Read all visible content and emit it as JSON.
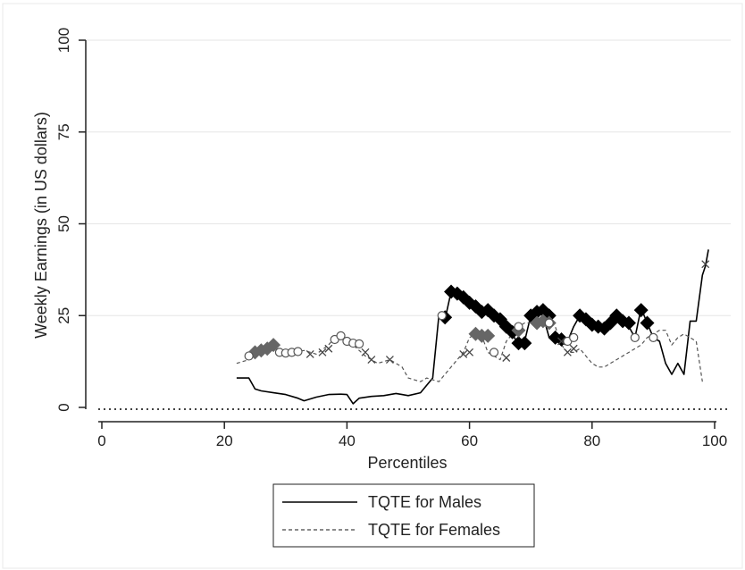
{
  "chart_data": {
    "type": "line",
    "xlabel": "Percentiles",
    "ylabel": "Weekly Earnings (in US dollars)",
    "xlim": [
      0,
      100
    ],
    "ylim": [
      0,
      100
    ],
    "xticks": [
      0,
      20,
      40,
      60,
      80,
      100
    ],
    "yticks": [
      0,
      25,
      50,
      75,
      100
    ],
    "xtick_labels": [
      "0",
      "20",
      "40",
      "60",
      "80",
      "100"
    ],
    "ytick_labels": [
      "0",
      "25",
      "50",
      "75",
      "100"
    ],
    "grid": "horizontal",
    "zero_reference_line": "dotted",
    "legend_position": "bottom",
    "legend": [
      "TQTE for Males",
      "TQTE for Females"
    ],
    "colors": {
      "males": "#000000",
      "females": "#555555",
      "diamond_dark": "#000000",
      "diamond_gray": "#666666",
      "gridline": "#e6e6e6",
      "frame": "#eaeaea"
    },
    "series": [
      {
        "name": "TQTE for Males",
        "style": "solid",
        "x": [
          22,
          24,
          25,
          26,
          28,
          30,
          32,
          33,
          35,
          37,
          39,
          40,
          41,
          42,
          44,
          46,
          48,
          49,
          50,
          52,
          54,
          55,
          56,
          57,
          58,
          59,
          60,
          61,
          62,
          63,
          64,
          65,
          66,
          67,
          68,
          69,
          70,
          71,
          72,
          73,
          74,
          75,
          76,
          77,
          78,
          79,
          80,
          81,
          82,
          83,
          84,
          85,
          86,
          87,
          88,
          89,
          90,
          91,
          92,
          93,
          94,
          95,
          96,
          97,
          98,
          98.5,
          99
        ],
        "values": [
          8,
          8,
          5,
          4.5,
          4,
          3.5,
          2.5,
          1.8,
          2.8,
          3.5,
          3.6,
          3.5,
          1,
          2.5,
          3,
          3.2,
          3.8,
          3.5,
          3.2,
          4,
          8,
          25,
          24,
          31.5,
          31,
          30,
          28.5,
          28,
          26,
          26.5,
          25,
          24,
          22,
          20,
          17,
          18,
          25,
          26,
          25,
          19,
          19,
          19,
          18,
          22,
          25,
          24,
          23,
          22,
          21,
          23,
          25,
          24,
          22,
          19,
          27,
          23,
          19,
          18,
          12,
          9,
          12,
          9,
          23.5,
          23.5,
          36,
          38.5,
          43
        ]
      },
      {
        "name": "TQTE for Females",
        "style": "dashed",
        "x": [
          22,
          24,
          25,
          27,
          29,
          31,
          33,
          35,
          37,
          38,
          39,
          40,
          41,
          43,
          45,
          47,
          49,
          50,
          52,
          53,
          55,
          57,
          58,
          59,
          60,
          61,
          62,
          63,
          65,
          66,
          67,
          68,
          69,
          70,
          71,
          72,
          73,
          74,
          75,
          76,
          77,
          78,
          79,
          80,
          81,
          82,
          84,
          86,
          87,
          88,
          89,
          90,
          91,
          92,
          93,
          94,
          95,
          96,
          97,
          98
        ],
        "values": [
          12,
          13,
          14,
          16,
          15,
          15,
          15.5,
          14.5,
          17,
          19,
          18.5,
          17,
          17,
          14,
          12,
          13,
          11,
          8,
          7,
          8,
          7,
          11,
          13,
          15,
          19,
          20,
          19.5,
          15,
          13,
          18,
          20,
          22,
          23,
          23,
          23,
          24,
          23,
          22,
          17,
          15,
          15,
          16,
          14,
          12,
          11,
          11,
          13,
          15,
          16,
          17,
          19,
          20,
          21,
          21,
          17,
          19,
          20,
          19,
          18,
          7
        ]
      }
    ],
    "marker_groups": [
      {
        "symbol": "diamond",
        "color": "dark",
        "x": [
          56,
          57,
          58,
          59,
          60,
          61,
          62,
          63,
          64,
          65,
          66,
          67,
          68,
          69,
          70,
          71,
          72,
          73,
          74,
          75,
          78,
          79,
          80,
          81,
          82,
          83,
          84,
          85,
          86,
          88,
          89
        ],
        "values": [
          24.5,
          31.5,
          31,
          30,
          28.5,
          27.5,
          26,
          26.5,
          25,
          24,
          22,
          20.5,
          17.5,
          17.5,
          25,
          26,
          26.5,
          25,
          19,
          18.5,
          25,
          24,
          22.5,
          22,
          21.5,
          23,
          25,
          23.5,
          23,
          26.5,
          23
        ]
      },
      {
        "symbol": "diamond",
        "color": "gray",
        "x": [
          25,
          26,
          27,
          28,
          61,
          62,
          63,
          68,
          71,
          72,
          73
        ],
        "values": [
          15,
          15.5,
          16,
          17,
          20,
          19.5,
          19.5,
          21,
          23,
          23.5,
          23
        ]
      },
      {
        "symbol": "circle",
        "x": [
          24,
          29,
          30,
          31,
          32,
          38,
          39,
          40,
          41,
          42,
          55.5,
          64,
          68,
          73,
          76,
          77,
          87,
          90
        ],
        "values": [
          14,
          15,
          14.8,
          15,
          15.2,
          18.5,
          19.5,
          18,
          17.5,
          17.3,
          25,
          15,
          22,
          23,
          18,
          19,
          19,
          19
        ]
      },
      {
        "symbol": "x",
        "x": [
          34,
          36,
          37,
          43,
          44,
          47,
          59,
          60,
          66,
          75,
          76,
          77,
          98.5
        ],
        "values": [
          14.5,
          15,
          16,
          15,
          13,
          13,
          14.5,
          15,
          13.5,
          18,
          15,
          16,
          39
        ]
      }
    ]
  }
}
